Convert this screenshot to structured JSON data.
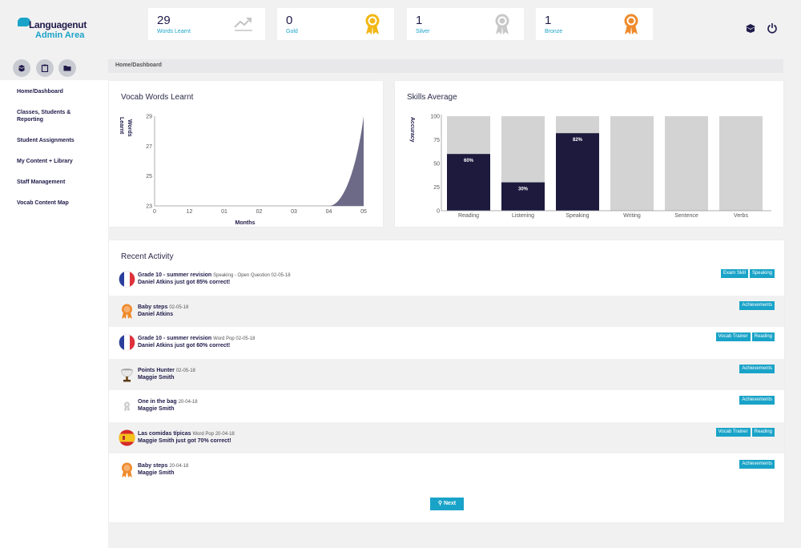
{
  "brand": {
    "name": "Languagenut",
    "subtitle": "Admin Area",
    "color": "#1aa3c8"
  },
  "stats": [
    {
      "value": "29",
      "label": "Words Learnt",
      "icon": "trend-icon"
    },
    {
      "value": "0",
      "label": "Gold",
      "icon": "gold-medal-icon",
      "color": "#f2b713"
    },
    {
      "value": "1",
      "label": "Silver",
      "icon": "silver-medal-icon",
      "color": "#c8c8c8"
    },
    {
      "value": "1",
      "label": "Bronze",
      "icon": "bronze-medal-icon",
      "color": "#ef8a2b"
    }
  ],
  "header_icons": [
    "book-icon",
    "power-icon"
  ],
  "sidebar_buttons": [
    "book-icon",
    "clipboard-icon",
    "folder-icon"
  ],
  "nav": [
    {
      "label": "Home/Dashboard"
    },
    {
      "label": "Classes, Students & Reporting"
    },
    {
      "label": "Student Assignments"
    },
    {
      "label": "My Content + Library"
    },
    {
      "label": "Staff Management"
    },
    {
      "label": "Vocab Content Map"
    }
  ],
  "breadcrumb": "Home/Dashboard",
  "vocab_chart": {
    "title": "Vocab Words Learnt",
    "chart_data": {
      "type": "area",
      "x": [
        "0",
        "12",
        "01",
        "02",
        "03",
        "04",
        "05"
      ],
      "ylabel": "Words Learnt",
      "xlabel": "Months",
      "y_ticks": [
        "23",
        "25",
        "27",
        "29"
      ],
      "series": [
        {
          "values": [
            23,
            23,
            23,
            23,
            23,
            23,
            29
          ]
        }
      ],
      "color": "#6c6a87"
    }
  },
  "skills_chart": {
    "title": "Skills Average",
    "chart_data": {
      "type": "bar",
      "categories": [
        "Reading",
        "Listening",
        "Speaking",
        "Writing",
        "Sentence",
        "Verbs"
      ],
      "values": [
        60,
        30,
        82,
        0,
        0,
        0
      ],
      "labels": [
        "60%",
        "30%",
        "82%",
        "",
        "",
        ""
      ],
      "ylabel": "Accuracy",
      "ylim": [
        0,
        100
      ],
      "y_ticks": [
        "0",
        "25",
        "50",
        "75",
        "100"
      ],
      "bar_color": "#1d1a3e",
      "background_color": "#d3d3d3"
    }
  },
  "activity": {
    "title": "Recent Activity",
    "rows": [
      {
        "title": "Grade 10 - summer revision",
        "meta": "Speaking - Open Question 02-05-18",
        "line2": "Daniel Atkins just got 85% correct!",
        "avatar": "france-flag-icon",
        "tags": [
          "Exam Skill",
          "Speaking"
        ]
      },
      {
        "title": "Baby steps",
        "meta": "02-05-18",
        "line2": "Daniel Atkins",
        "avatar": "bronze-medal-icon",
        "tags": [
          "Achievements"
        ]
      },
      {
        "title": "Grade 10 - summer revision",
        "meta": "Word Pop 02-05-18",
        "line2": "Daniel Atkins just got 60% correct!",
        "avatar": "france-flag-icon",
        "tags": [
          "Vocab Trainer",
          "Reading"
        ]
      },
      {
        "title": "Points Hunter",
        "meta": "02-05-18",
        "line2": "Maggie Smith",
        "avatar": "trophy-icon",
        "tags": [
          "Achievements"
        ]
      },
      {
        "title": "One in the bag",
        "meta": "20-04-18",
        "line2": "Maggie Smith",
        "avatar": "silver-medal-icon",
        "tags": [
          "Achievements"
        ]
      },
      {
        "title": "Las comidas típicas",
        "meta": "Word Pop 20-04-18",
        "line2": "Maggie Smith just got 70% correct!",
        "avatar": "spain-flag-icon",
        "tags": [
          "Vocab Trainer",
          "Reading"
        ]
      },
      {
        "title": "Baby steps",
        "meta": "20-04-18",
        "line2": "Maggie Smith",
        "avatar": "bronze-medal-icon",
        "tags": [
          "Achievements"
        ]
      }
    ],
    "next_label": "Next"
  }
}
